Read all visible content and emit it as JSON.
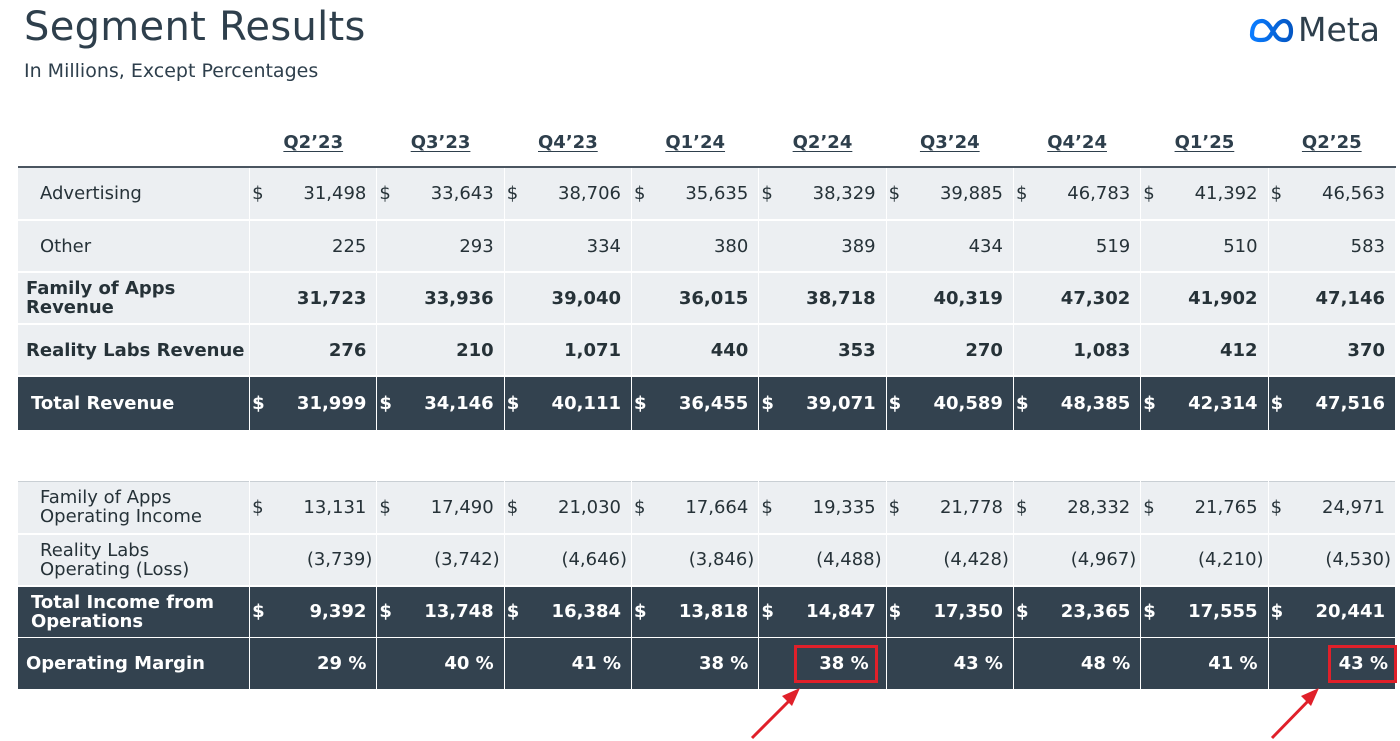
{
  "header": {
    "title": "Segment Results",
    "subtitle": "In Millions, Except Percentages",
    "logo_text": "Meta"
  },
  "columns": [
    "Q2’23",
    "Q3’23",
    "Q4’23",
    "Q1’24",
    "Q2’24",
    "Q3’24",
    "Q4’24",
    "Q1’25",
    "Q2’25"
  ],
  "revenue_rows": [
    {
      "label": "Advertising",
      "currency": "$",
      "values": [
        "31,498",
        "33,643",
        "38,706",
        "35,635",
        "38,329",
        "39,885",
        "46,783",
        "41,392",
        "46,563"
      ]
    },
    {
      "label": "Other",
      "currency": "",
      "values": [
        "225",
        "293",
        "334",
        "380",
        "389",
        "434",
        "519",
        "510",
        "583"
      ]
    },
    {
      "label_line1": "Family of Apps",
      "label_line2": "Revenue",
      "currency": "",
      "values": [
        "31,723",
        "33,936",
        "39,040",
        "36,015",
        "38,718",
        "40,319",
        "47,302",
        "41,902",
        "47,146"
      ]
    },
    {
      "label": "Reality Labs Revenue",
      "currency": "",
      "values": [
        "276",
        "210",
        "1,071",
        "440",
        "353",
        "270",
        "1,083",
        "412",
        "370"
      ]
    },
    {
      "label": "Total Revenue",
      "currency": "$",
      "values": [
        "31,999",
        "34,146",
        "40,111",
        "36,455",
        "39,071",
        "40,589",
        "48,385",
        "42,314",
        "47,516"
      ]
    }
  ],
  "operating_rows": [
    {
      "label_line1": "Family of Apps",
      "label_line2": "Operating Income",
      "currency": "$",
      "values": [
        "13,131",
        "17,490",
        "21,030",
        "17,664",
        "19,335",
        "21,778",
        "28,332",
        "21,765",
        "24,971"
      ]
    },
    {
      "label_line1": "Reality Labs",
      "label_line2": "Operating (Loss)",
      "currency": "",
      "values": [
        "(3,739)",
        "(3,742)",
        "(4,646)",
        "(3,846)",
        "(4,488)",
        "(4,428)",
        "(4,967)",
        "(4,210)",
        "(4,530)"
      ]
    },
    {
      "label_line1": "Total Income from",
      "label_line2": "Operations",
      "currency": "$",
      "values": [
        "9,392",
        "13,748",
        "16,384",
        "13,818",
        "14,847",
        "17,350",
        "23,365",
        "17,555",
        "20,441"
      ]
    },
    {
      "label": "Operating Margin",
      "currency": "",
      "values": [
        "29 %",
        "40 %",
        "41 %",
        "38 %",
        "38 %",
        "43 %",
        "48 %",
        "41 %",
        "43 %"
      ]
    }
  ],
  "highlighted_columns": [
    "Q2’24",
    "Q2’25"
  ],
  "colors": {
    "dark_row": "#33424f",
    "light_row": "#eceff2",
    "highlight": "#e0202a",
    "logo_blue": "#0668e1"
  }
}
